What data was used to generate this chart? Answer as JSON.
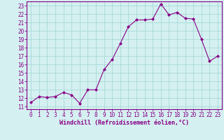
{
  "x": [
    0,
    1,
    2,
    3,
    4,
    5,
    6,
    7,
    8,
    9,
    10,
    11,
    12,
    13,
    14,
    15,
    16,
    17,
    18,
    19,
    20,
    21,
    22,
    23
  ],
  "y": [
    11.5,
    12.2,
    12.1,
    12.2,
    12.7,
    12.4,
    11.4,
    13.0,
    13.0,
    15.4,
    16.6,
    18.5,
    20.5,
    21.3,
    21.3,
    21.4,
    23.2,
    21.9,
    22.2,
    21.5,
    21.4,
    19.0,
    16.4,
    17.0
  ],
  "line_color": "#880088",
  "marker": "D",
  "marker_size": 2.0,
  "bg_color": "#d4f0f0",
  "grid_color": "#aad8d8",
  "xlabel": "Windchill (Refroidissement éolien,°C)",
  "ylabel_ticks": [
    11,
    12,
    13,
    14,
    15,
    16,
    17,
    18,
    19,
    20,
    21,
    22,
    23
  ],
  "xlim": [
    -0.5,
    23.5
  ],
  "ylim": [
    10.7,
    23.5
  ],
  "tick_fontsize": 5.5,
  "xlabel_fontsize": 6.0
}
